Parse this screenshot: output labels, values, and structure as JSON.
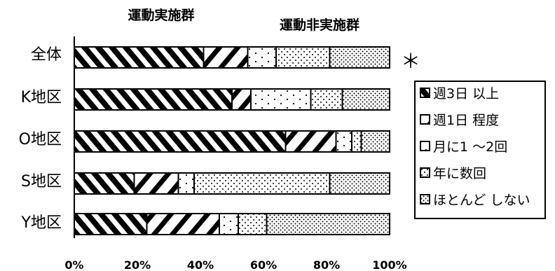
{
  "chart_data": {
    "type": "bar",
    "orientation": "horizontal",
    "stacked": true,
    "group_headers": [
      "運動実施群",
      "運動非実施群"
    ],
    "categories": [
      "全体",
      "K地区",
      "O地区",
      "S地区",
      "Y地区"
    ],
    "series": [
      {
        "name": "週3日 以上",
        "pattern": "dense-diagonal",
        "values": [
          41,
          50,
          67,
          19,
          23
        ]
      },
      {
        "name": "週1日 程度",
        "pattern": "wide-diagonal",
        "values": [
          14,
          6,
          16,
          14,
          23
        ]
      },
      {
        "name": "月に1 ～2回",
        "pattern": "sparse-dots",
        "values": [
          9,
          19,
          5,
          5,
          6
        ]
      },
      {
        "name": "年に数回",
        "pattern": "dots",
        "values": [
          17,
          10,
          3,
          43,
          9
        ]
      },
      {
        "name": "ほとんど しない",
        "pattern": "dense-dots",
        "values": [
          19,
          15,
          9,
          19,
          39
        ]
      }
    ],
    "x_ticks": [
      "0%",
      "20%",
      "40%",
      "60%",
      "80%",
      "100%"
    ],
    "xlim": [
      0,
      100
    ],
    "annotation": "＊",
    "legend_position": "right",
    "grid": false
  }
}
